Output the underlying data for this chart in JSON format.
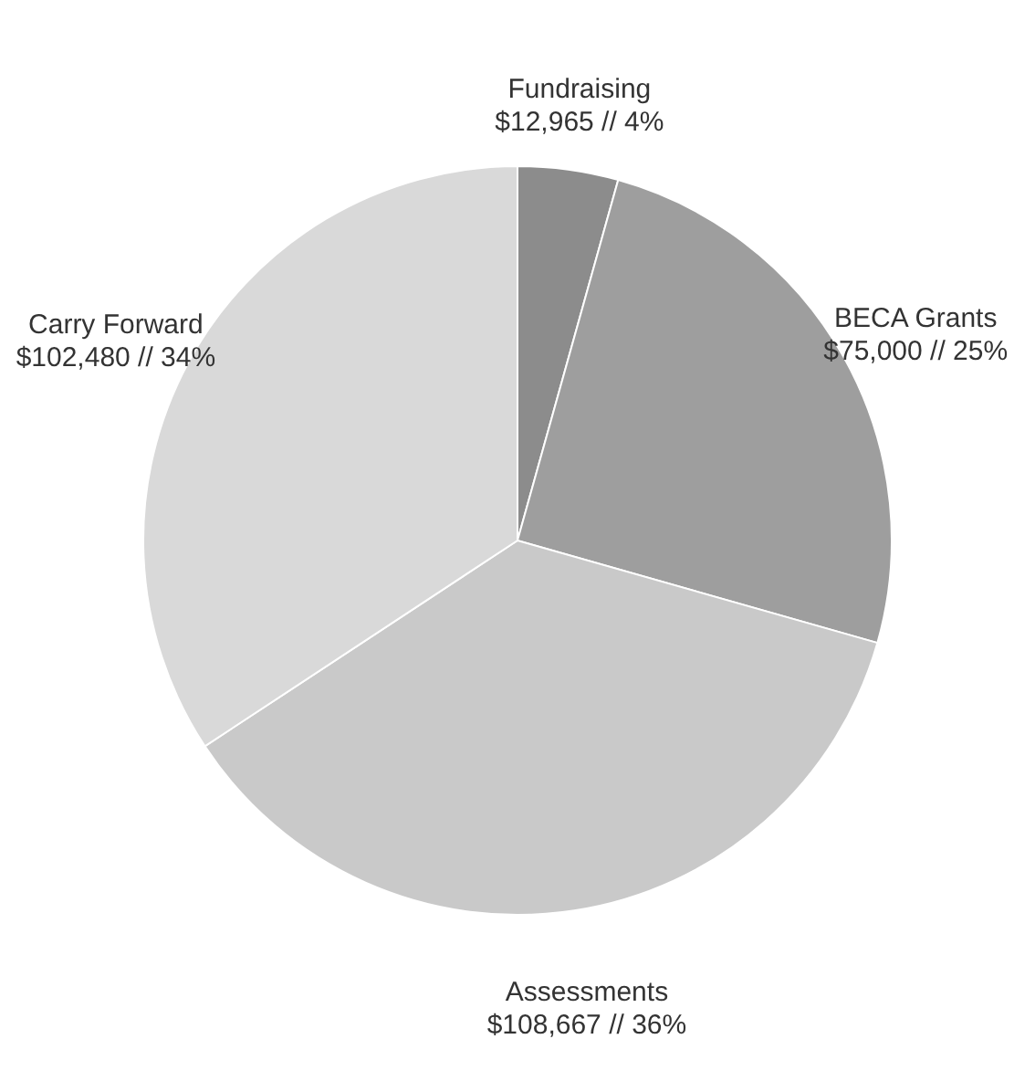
{
  "chart_data": {
    "type": "pie",
    "categories": [
      "Fundraising",
      "BECA Grants",
      "Assessments",
      "Carry Forward"
    ],
    "values": [
      12965,
      75000,
      108667,
      102480
    ],
    "value_labels": [
      "$12,965 // 4%",
      "$75,000 // 25%",
      "$108,667 // 36%",
      "$102,480 // 34%"
    ],
    "colors": [
      "#8c8c8c",
      "#9e9e9e",
      "#c9c9c9",
      "#d9d9d9"
    ]
  }
}
